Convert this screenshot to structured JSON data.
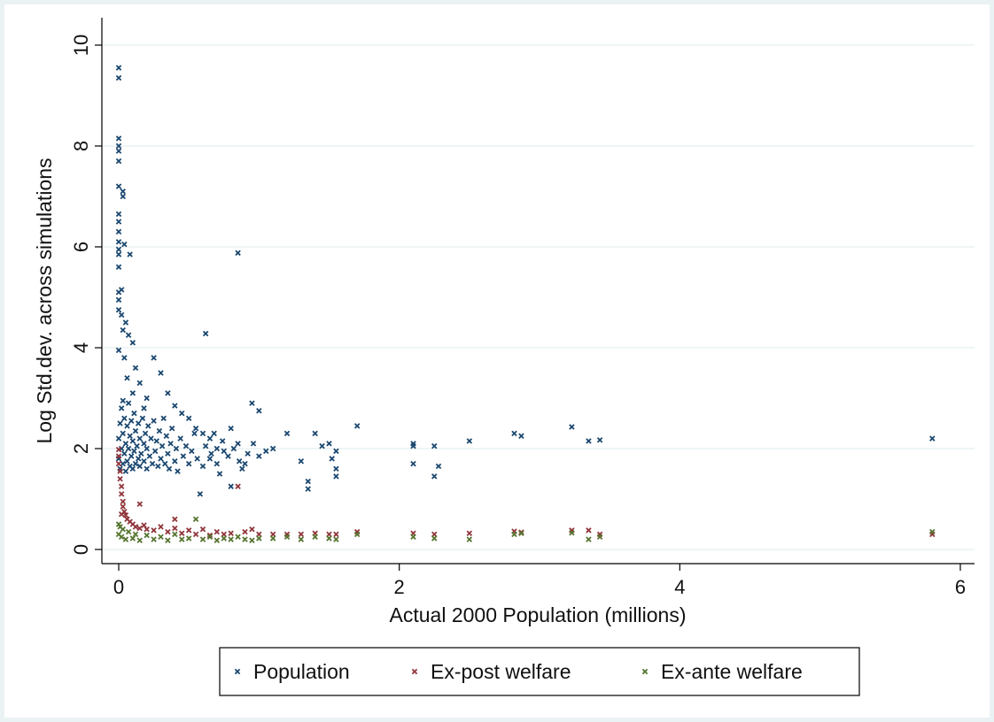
{
  "chart_data": {
    "type": "scatter",
    "title": "",
    "xlabel": "Actual 2000 Population (millions)",
    "ylabel": "Log Std.dev. across simulations",
    "xlim": [
      0,
      6
    ],
    "ylim": [
      0,
      10
    ],
    "x_ticks": [
      "0",
      "2",
      "4",
      "6"
    ],
    "y_ticks": [
      "0",
      "2",
      "4",
      "6",
      "8",
      "10"
    ],
    "grid": "horizontal",
    "legend_position": "bottom",
    "colors": {
      "background": "#eaf2f3",
      "plot_background": "#ffffff",
      "grid": "#eaf2f3",
      "axis": "#000000"
    },
    "series": [
      {
        "name": "Population",
        "color": "#1a476f",
        "points": [
          [
            0.0,
            9.55
          ],
          [
            0.0,
            9.35
          ],
          [
            0.0,
            8.15
          ],
          [
            0.0,
            8.0
          ],
          [
            0.0,
            7.9
          ],
          [
            0.0,
            7.7
          ],
          [
            0.0,
            7.2
          ],
          [
            0.03,
            7.1
          ],
          [
            0.03,
            7.0
          ],
          [
            0.0,
            6.65
          ],
          [
            0.0,
            6.5
          ],
          [
            0.0,
            6.3
          ],
          [
            0.0,
            6.1
          ],
          [
            0.0,
            5.95
          ],
          [
            0.0,
            5.85
          ],
          [
            0.0,
            5.6
          ],
          [
            0.04,
            6.05
          ],
          [
            0.08,
            5.85
          ],
          [
            0.02,
            5.15
          ],
          [
            0.0,
            5.1
          ],
          [
            0.0,
            4.95
          ],
          [
            0.0,
            4.75
          ],
          [
            0.02,
            4.65
          ],
          [
            0.05,
            4.5
          ],
          [
            0.03,
            4.35
          ],
          [
            0.07,
            4.25
          ],
          [
            0.1,
            4.1
          ],
          [
            0.0,
            3.95
          ],
          [
            0.04,
            3.8
          ],
          [
            0.12,
            3.6
          ],
          [
            0.06,
            3.4
          ],
          [
            0.15,
            3.3
          ],
          [
            0.1,
            3.1
          ],
          [
            0.2,
            3.0
          ],
          [
            0.03,
            2.95
          ],
          [
            0.18,
            2.8
          ],
          [
            0.25,
            3.8
          ],
          [
            0.3,
            3.5
          ],
          [
            0.35,
            3.1
          ],
          [
            0.4,
            2.85
          ],
          [
            0.45,
            2.7
          ],
          [
            0.5,
            2.6
          ],
          [
            0.55,
            2.4
          ],
          [
            0.6,
            2.3
          ],
          [
            0.65,
            2.2
          ],
          [
            0.7,
            2.0
          ],
          [
            0.75,
            1.95
          ],
          [
            0.8,
            2.4
          ],
          [
            0.85,
            2.1
          ],
          [
            0.9,
            1.7
          ],
          [
            0.95,
            2.9
          ],
          [
            1.0,
            2.75
          ],
          [
            1.05,
            1.95
          ],
          [
            0.62,
            4.28
          ],
          [
            0.85,
            5.88
          ],
          [
            0.58,
            1.1
          ],
          [
            0.8,
            1.25
          ],
          [
            0.88,
            1.6
          ],
          [
            0.72,
            1.5
          ],
          [
            0.65,
            1.8
          ],
          [
            1.1,
            2.0
          ],
          [
            1.2,
            2.3
          ],
          [
            1.3,
            1.75
          ],
          [
            1.35,
            1.35
          ],
          [
            1.35,
            1.2
          ],
          [
            1.4,
            2.3
          ],
          [
            1.45,
            2.05
          ],
          [
            1.5,
            2.1
          ],
          [
            1.52,
            1.8
          ],
          [
            1.55,
            1.6
          ],
          [
            1.55,
            1.45
          ],
          [
            1.55,
            1.95
          ],
          [
            1.7,
            2.45
          ],
          [
            2.1,
            2.05
          ],
          [
            2.1,
            1.7
          ],
          [
            2.1,
            2.1
          ],
          [
            2.25,
            2.05
          ],
          [
            2.25,
            1.45
          ],
          [
            2.28,
            1.65
          ],
          [
            2.5,
            2.15
          ],
          [
            2.82,
            2.3
          ],
          [
            2.87,
            2.25
          ],
          [
            3.23,
            2.43
          ],
          [
            3.35,
            2.15
          ],
          [
            3.43,
            2.17
          ],
          [
            5.8,
            2.2
          ],
          [
            0.0,
            2.2
          ],
          [
            0.0,
            1.8
          ],
          [
            0.01,
            2.5
          ],
          [
            0.01,
            1.6
          ],
          [
            0.02,
            2.0
          ],
          [
            0.02,
            2.8
          ],
          [
            0.03,
            1.7
          ],
          [
            0.03,
            2.3
          ],
          [
            0.04,
            1.9
          ],
          [
            0.04,
            2.6
          ],
          [
            0.05,
            1.55
          ],
          [
            0.05,
            2.1
          ],
          [
            0.06,
            2.45
          ],
          [
            0.06,
            1.75
          ],
          [
            0.07,
            2.0
          ],
          [
            0.07,
            2.9
          ],
          [
            0.08,
            1.65
          ],
          [
            0.08,
            2.25
          ],
          [
            0.09,
            1.85
          ],
          [
            0.09,
            2.55
          ],
          [
            0.1,
            1.6
          ],
          [
            0.1,
            2.15
          ],
          [
            0.11,
            1.95
          ],
          [
            0.11,
            2.7
          ],
          [
            0.12,
            1.7
          ],
          [
            0.12,
            2.35
          ],
          [
            0.13,
            2.05
          ],
          [
            0.14,
            1.8
          ],
          [
            0.14,
            2.5
          ],
          [
            0.15,
            1.65
          ],
          [
            0.15,
            2.2
          ],
          [
            0.16,
            1.9
          ],
          [
            0.17,
            2.6
          ],
          [
            0.18,
            1.75
          ],
          [
            0.18,
            2.1
          ],
          [
            0.19,
            2.3
          ],
          [
            0.2,
            1.6
          ],
          [
            0.2,
            2.0
          ],
          [
            0.21,
            2.45
          ],
          [
            0.22,
            1.85
          ],
          [
            0.23,
            2.2
          ],
          [
            0.24,
            1.7
          ],
          [
            0.25,
            2.55
          ],
          [
            0.26,
            1.95
          ],
          [
            0.27,
            2.15
          ],
          [
            0.28,
            1.65
          ],
          [
            0.29,
            2.35
          ],
          [
            0.3,
            1.8
          ],
          [
            0.31,
            2.05
          ],
          [
            0.32,
            2.6
          ],
          [
            0.33,
            1.7
          ],
          [
            0.34,
            2.25
          ],
          [
            0.35,
            1.9
          ],
          [
            0.36,
            1.6
          ],
          [
            0.37,
            2.1
          ],
          [
            0.38,
            2.4
          ],
          [
            0.4,
            1.75
          ],
          [
            0.41,
            2.0
          ],
          [
            0.42,
            1.55
          ],
          [
            0.44,
            2.2
          ],
          [
            0.46,
            1.85
          ],
          [
            0.48,
            2.05
          ],
          [
            0.5,
            1.7
          ],
          [
            0.52,
            1.95
          ],
          [
            0.54,
            2.3
          ],
          [
            0.56,
            1.8
          ],
          [
            0.6,
            1.65
          ],
          [
            0.62,
            2.05
          ],
          [
            0.66,
            1.9
          ],
          [
            0.68,
            2.3
          ],
          [
            0.7,
            1.7
          ],
          [
            0.74,
            2.15
          ],
          [
            0.78,
            1.85
          ],
          [
            0.82,
            2.0
          ],
          [
            0.86,
            1.75
          ],
          [
            0.92,
            1.9
          ],
          [
            0.96,
            2.1
          ],
          [
            1.0,
            1.85
          ]
        ]
      },
      {
        "name": "Ex-post welfare",
        "color": "#90353b",
        "points": [
          [
            0.0,
            1.98
          ],
          [
            0.0,
            1.85
          ],
          [
            0.0,
            1.7
          ],
          [
            0.01,
            1.55
          ],
          [
            0.01,
            1.4
          ],
          [
            0.02,
            1.25
          ],
          [
            0.02,
            1.1
          ],
          [
            0.03,
            0.95
          ],
          [
            0.03,
            0.85
          ],
          [
            0.04,
            0.75
          ],
          [
            0.05,
            0.68
          ],
          [
            0.06,
            0.6
          ],
          [
            0.08,
            0.55
          ],
          [
            0.1,
            0.5
          ],
          [
            0.12,
            0.45
          ],
          [
            0.15,
            0.42
          ],
          [
            0.18,
            0.48
          ],
          [
            0.2,
            0.4
          ],
          [
            0.25,
            0.38
          ],
          [
            0.3,
            0.45
          ],
          [
            0.35,
            0.35
          ],
          [
            0.4,
            0.42
          ],
          [
            0.45,
            0.32
          ],
          [
            0.5,
            0.38
          ],
          [
            0.55,
            0.3
          ],
          [
            0.6,
            0.4
          ],
          [
            0.65,
            0.28
          ],
          [
            0.7,
            0.35
          ],
          [
            0.75,
            0.3
          ],
          [
            0.8,
            0.32
          ],
          [
            0.85,
            1.25
          ],
          [
            0.9,
            0.35
          ],
          [
            0.95,
            0.4
          ],
          [
            1.0,
            0.3
          ],
          [
            1.1,
            0.3
          ],
          [
            1.2,
            0.3
          ],
          [
            1.3,
            0.3
          ],
          [
            1.4,
            0.32
          ],
          [
            1.5,
            0.3
          ],
          [
            1.55,
            0.3
          ],
          [
            1.7,
            0.35
          ],
          [
            2.1,
            0.32
          ],
          [
            2.25,
            0.3
          ],
          [
            2.5,
            0.32
          ],
          [
            2.82,
            0.36
          ],
          [
            2.87,
            0.34
          ],
          [
            3.23,
            0.38
          ],
          [
            3.35,
            0.38
          ],
          [
            3.43,
            0.3
          ],
          [
            5.8,
            0.3
          ],
          [
            0.15,
            0.9
          ],
          [
            0.4,
            0.6
          ],
          [
            0.02,
            0.7
          ]
        ]
      },
      {
        "name": "Ex-ante welfare",
        "color": "#55752f",
        "points": [
          [
            0.0,
            0.5
          ],
          [
            0.0,
            0.3
          ],
          [
            0.01,
            0.45
          ],
          [
            0.02,
            0.25
          ],
          [
            0.03,
            0.4
          ],
          [
            0.05,
            0.2
          ],
          [
            0.07,
            0.35
          ],
          [
            0.1,
            0.22
          ],
          [
            0.12,
            0.3
          ],
          [
            0.15,
            0.18
          ],
          [
            0.2,
            0.28
          ],
          [
            0.25,
            0.2
          ],
          [
            0.3,
            0.25
          ],
          [
            0.35,
            0.18
          ],
          [
            0.4,
            0.3
          ],
          [
            0.45,
            0.2
          ],
          [
            0.5,
            0.22
          ],
          [
            0.55,
            0.6
          ],
          [
            0.6,
            0.2
          ],
          [
            0.65,
            0.25
          ],
          [
            0.7,
            0.18
          ],
          [
            0.75,
            0.22
          ],
          [
            0.8,
            0.2
          ],
          [
            0.85,
            0.25
          ],
          [
            0.9,
            0.2
          ],
          [
            0.95,
            0.18
          ],
          [
            1.0,
            0.22
          ],
          [
            1.1,
            0.22
          ],
          [
            1.2,
            0.25
          ],
          [
            1.3,
            0.2
          ],
          [
            1.4,
            0.25
          ],
          [
            1.5,
            0.22
          ],
          [
            1.55,
            0.2
          ],
          [
            1.7,
            0.3
          ],
          [
            2.1,
            0.25
          ],
          [
            2.25,
            0.22
          ],
          [
            2.5,
            0.2
          ],
          [
            2.82,
            0.3
          ],
          [
            2.87,
            0.32
          ],
          [
            3.23,
            0.33
          ],
          [
            3.35,
            0.2
          ],
          [
            3.43,
            0.25
          ],
          [
            5.8,
            0.35
          ]
        ]
      }
    ]
  }
}
